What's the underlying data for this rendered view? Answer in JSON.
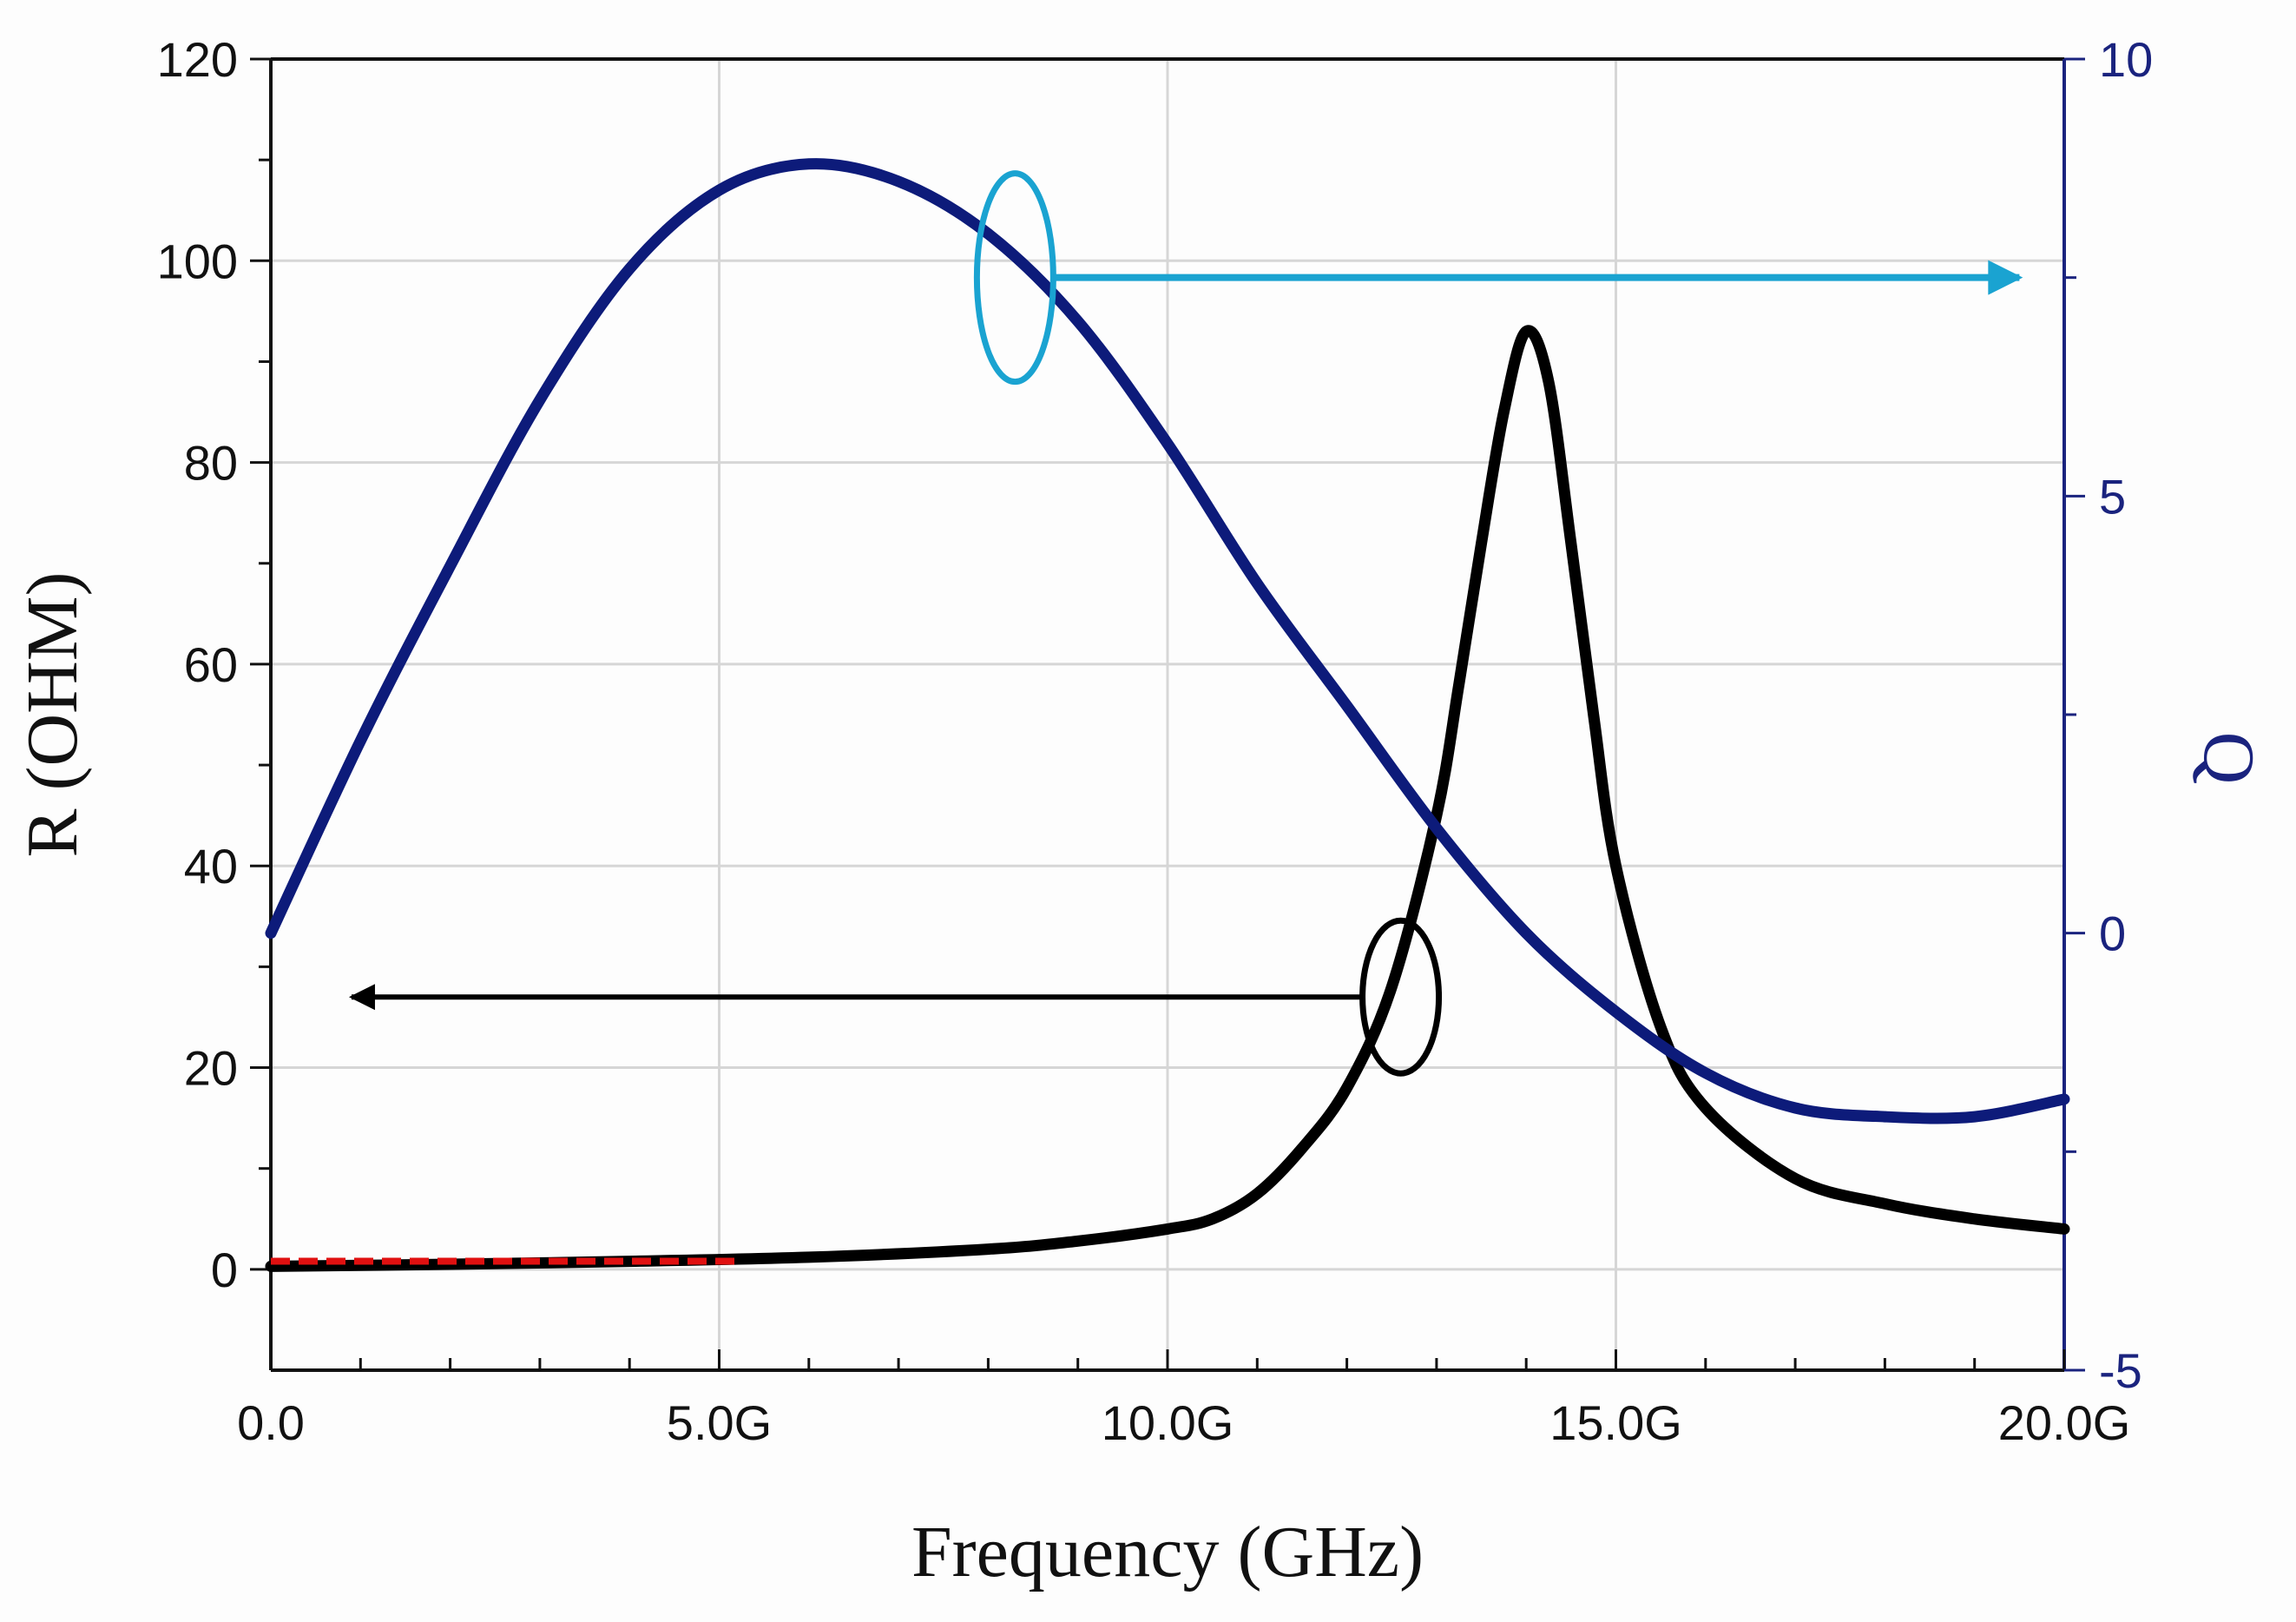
{
  "chart_data": {
    "type": "line",
    "title": "",
    "xlabel": "Frequency (GHz)",
    "ylabel_left": "R (OHM)",
    "ylabel_right": "Q",
    "x_range": [
      0,
      20
    ],
    "y_left_range": [
      -10,
      120
    ],
    "y_right_range": [
      -5,
      10
    ],
    "x_tick_labels": [
      {
        "value": 0,
        "label": "0.0"
      },
      {
        "value": 5,
        "label": "5.0G"
      },
      {
        "value": 10,
        "label": "10.0G"
      },
      {
        "value": 15,
        "label": "15.0G"
      },
      {
        "value": 20,
        "label": "20.0G"
      }
    ],
    "y_left_ticks": [
      {
        "value": 0,
        "label": "0"
      },
      {
        "value": 20,
        "label": "20"
      },
      {
        "value": 40,
        "label": "40"
      },
      {
        "value": 60,
        "label": "60"
      },
      {
        "value": 80,
        "label": "80"
      },
      {
        "value": 100,
        "label": "100"
      },
      {
        "value": 120,
        "label": "120"
      }
    ],
    "y_right_ticks": [
      {
        "value": -5,
        "label": "-5"
      },
      {
        "value": 0,
        "label": "0"
      },
      {
        "value": 5,
        "label": "5"
      },
      {
        "value": 10,
        "label": "10"
      }
    ],
    "grid": true,
    "series": [
      {
        "name": "R",
        "axis": "left",
        "color": "#000000",
        "x": [
          0,
          2,
          4,
          6,
          8,
          9,
          10,
          10.5,
          11,
          11.5,
          12,
          12.5,
          13,
          13.25,
          13.5,
          13.75,
          14,
          14.25,
          14.5,
          14.75,
          15,
          15.5,
          16,
          17,
          18,
          19,
          20
        ],
        "values": [
          0.3,
          0.5,
          0.8,
          1.2,
          2,
          2.8,
          4,
          5,
          7.5,
          12,
          18,
          28,
          45,
          58,
          72,
          85,
          93,
          88,
          72,
          55,
          40,
          24,
          16,
          9,
          6.5,
          5,
          4
        ]
      },
      {
        "name": "Q",
        "axis": "right",
        "color": "#0d1b7a",
        "x": [
          0,
          1,
          2,
          3,
          4,
          5,
          6,
          7,
          8,
          9,
          10,
          11,
          12,
          13,
          14,
          15,
          16,
          17,
          18,
          19,
          20
        ],
        "values": [
          0,
          2.2,
          4.2,
          6.1,
          7.6,
          8.5,
          8.8,
          8.6,
          8.0,
          7.0,
          5.6,
          4.0,
          2.6,
          1.2,
          0,
          -0.9,
          -1.6,
          -2.0,
          -2.1,
          -2.1,
          -1.9
        ]
      },
      {
        "name": "R low-frequency reference",
        "axis": "left",
        "color": "#e01010",
        "style": "dashed",
        "x": [
          0,
          5.2
        ],
        "values": [
          0.8,
          0.8
        ]
      }
    ],
    "annotations": [
      {
        "type": "ellipse",
        "color": "#1aa3d1",
        "at_x": 8.3,
        "at_y_right": 7.5,
        "arrow_to": "right",
        "arrow_end_x": 19.5
      },
      {
        "type": "ellipse",
        "color": "#000000",
        "at_x": 12.6,
        "at_y_left": 27,
        "arrow_to": "left",
        "arrow_end_x": 0.9
      }
    ]
  }
}
